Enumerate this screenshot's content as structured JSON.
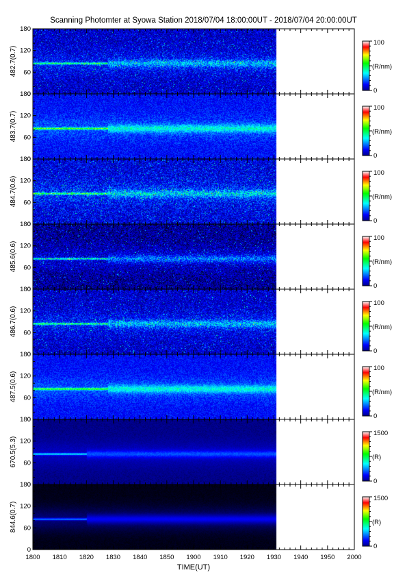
{
  "title": "Scanning Photomter at Syowa Station 2018/07/04 18:00:00UT - 2018/07/04 20:00:00UT",
  "chart_data": {
    "type": "heatmap",
    "xlabel": "TIME(UT)",
    "x_ticks": [
      "1800",
      "1810",
      "1820",
      "1830",
      "1840",
      "1850",
      "1900",
      "1910",
      "1920",
      "1930",
      "1940",
      "1950",
      "2000"
    ],
    "xlim": [
      "18:00",
      "20:00"
    ],
    "data_end": "19:31",
    "ylim": [
      0,
      180
    ],
    "y_ticks": [
      "0",
      "60",
      "120",
      "180"
    ],
    "colormap": [
      "#000000",
      "#00008b",
      "#0000ff",
      "#00ffff",
      "#00ff00",
      "#ffff00",
      "#ff0000",
      "#ffffff"
    ],
    "panels": [
      {
        "label": "482.7(0.7)",
        "unit": "(R/nm)",
        "cmin": "0",
        "cmax": "100",
        "band_y": 85,
        "band_fade": "18:28",
        "noise": 0.55,
        "base": 0.22
      },
      {
        "label": "483.7(0.7)",
        "unit": "(R/nm)",
        "cmin": "0",
        "cmax": "100",
        "band_y": 85,
        "band_fade": "18:28",
        "noise": 0.35,
        "base": 0.3
      },
      {
        "label": "484.7(0.6)",
        "unit": "(R/nm)",
        "cmin": "0",
        "cmax": "100",
        "band_y": 85,
        "band_fade": "18:28",
        "noise": 0.6,
        "base": 0.25
      },
      {
        "label": "485.6(0.6)",
        "unit": "(R/nm)",
        "cmin": "0",
        "cmax": "100",
        "band_y": 85,
        "band_fade": "18:28",
        "noise": 0.55,
        "base": 0.15
      },
      {
        "label": "486.7(0.6)",
        "unit": "(R/nm)",
        "cmin": "0",
        "cmax": "100",
        "band_y": 85,
        "band_fade": "18:28",
        "noise": 0.55,
        "base": 0.22
      },
      {
        "label": "487.5(0.6)",
        "unit": "(R/nm)",
        "cmin": "0",
        "cmax": "100",
        "band_y": 85,
        "band_fade": "18:28",
        "noise": 0.3,
        "base": 0.3
      },
      {
        "label": "670.5(5.3)",
        "unit": "(R)",
        "cmin": "0",
        "cmax": "1500",
        "band_y": 85,
        "band_fade": "18:20",
        "noise": 0.12,
        "base": 0.12
      },
      {
        "label": "844.6(0.7)",
        "unit": "(R)",
        "cmin": "0",
        "cmax": "1500",
        "band_y": 85,
        "band_fade": "18:20",
        "noise": 0.05,
        "base": 0.02
      }
    ]
  }
}
